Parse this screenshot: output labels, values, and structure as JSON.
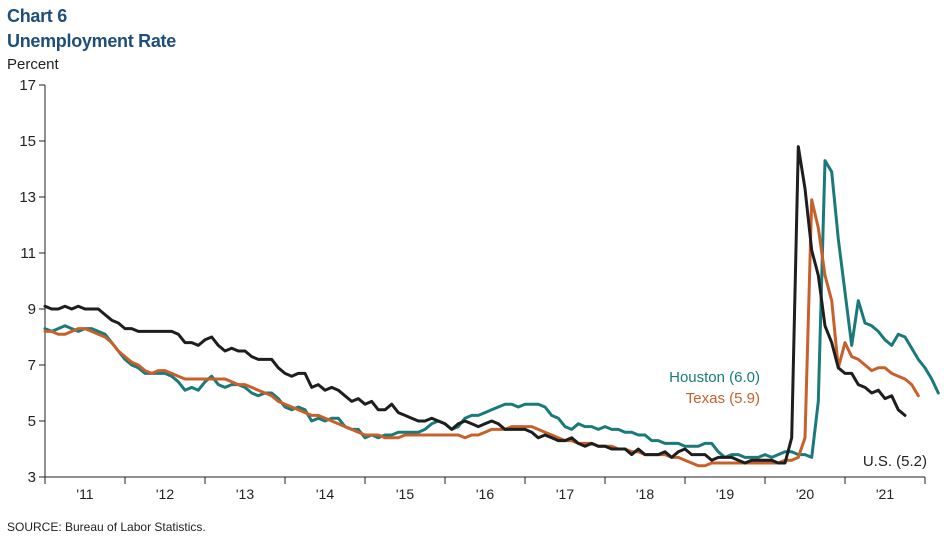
{
  "title_line1": "Chart 6",
  "title_line2": "Unemployment Rate",
  "unit_label": "Percent",
  "source": "SOURCE: Bureau of Labor Statistics.",
  "chart_data": {
    "type": "line",
    "title": "Unemployment Rate",
    "ylabel": "Percent",
    "xlabel": "",
    "ylim": [
      3,
      17
    ],
    "yticks": [
      3,
      5,
      7,
      9,
      11,
      13,
      15,
      17
    ],
    "xlim": [
      2010.5,
      2021.5
    ],
    "x_ticks": [
      {
        "label": "'11",
        "x": 2011
      },
      {
        "label": "'12",
        "x": 2012
      },
      {
        "label": "'13",
        "x": 2013
      },
      {
        "label": "'14",
        "x": 2014
      },
      {
        "label": "'15",
        "x": 2015
      },
      {
        "label": "'16",
        "x": 2016
      },
      {
        "label": "'17",
        "x": 2017
      },
      {
        "label": "'18",
        "x": 2018
      },
      {
        "label": "'19",
        "x": 2019
      },
      {
        "label": "'20",
        "x": 2020
      },
      {
        "label": "'21",
        "x": 2021
      }
    ],
    "x_start": 2010.5,
    "x_step_months": 1,
    "series": [
      {
        "name": "Houston",
        "label": "Houston (6.0)",
        "color": "#1a7a7a",
        "values": [
          8.3,
          8.2,
          8.3,
          8.4,
          8.3,
          8.2,
          8.3,
          8.3,
          8.2,
          8.1,
          7.8,
          7.5,
          7.2,
          7.0,
          6.9,
          6.7,
          6.7,
          6.7,
          6.7,
          6.6,
          6.4,
          6.1,
          6.2,
          6.1,
          6.4,
          6.6,
          6.3,
          6.2,
          6.3,
          6.3,
          6.2,
          6.0,
          5.9,
          6.0,
          6.0,
          5.8,
          5.5,
          5.4,
          5.5,
          5.4,
          5.0,
          5.1,
          5.0,
          5.1,
          5.1,
          4.8,
          4.7,
          4.7,
          4.4,
          4.5,
          4.4,
          4.5,
          4.5,
          4.6,
          4.6,
          4.6,
          4.6,
          4.7,
          4.9,
          5.0,
          4.9,
          4.7,
          4.8,
          5.1,
          5.2,
          5.2,
          5.3,
          5.4,
          5.5,
          5.6,
          5.6,
          5.5,
          5.6,
          5.6,
          5.6,
          5.5,
          5.2,
          5.1,
          4.8,
          4.7,
          4.9,
          4.8,
          4.8,
          4.7,
          4.8,
          4.7,
          4.7,
          4.6,
          4.6,
          4.5,
          4.5,
          4.3,
          4.3,
          4.2,
          4.2,
          4.2,
          4.1,
          4.1,
          4.1,
          4.2,
          4.2,
          3.9,
          3.7,
          3.8,
          3.8,
          3.7,
          3.7,
          3.7,
          3.8,
          3.7,
          3.8,
          3.9,
          3.9,
          3.8,
          3.8,
          3.7,
          5.7,
          14.3,
          13.9,
          11.5,
          9.6,
          7.7,
          9.3,
          8.5,
          8.4,
          8.2,
          7.9,
          7.7,
          8.1,
          8.0,
          7.6,
          7.2,
          6.9,
          6.5,
          6.0
        ]
      },
      {
        "name": "Texas",
        "label": "Texas (5.9)",
        "color": "#c8602c",
        "values": [
          8.2,
          8.2,
          8.1,
          8.1,
          8.2,
          8.3,
          8.3,
          8.2,
          8.1,
          8.0,
          7.8,
          7.5,
          7.3,
          7.1,
          7.0,
          6.8,
          6.7,
          6.8,
          6.8,
          6.7,
          6.6,
          6.5,
          6.5,
          6.5,
          6.5,
          6.5,
          6.5,
          6.5,
          6.4,
          6.3,
          6.3,
          6.2,
          6.1,
          6.0,
          5.9,
          5.7,
          5.6,
          5.5,
          5.4,
          5.3,
          5.2,
          5.2,
          5.1,
          5.0,
          4.9,
          4.8,
          4.7,
          4.6,
          4.5,
          4.5,
          4.5,
          4.4,
          4.4,
          4.4,
          4.5,
          4.5,
          4.5,
          4.5,
          4.5,
          4.5,
          4.5,
          4.5,
          4.5,
          4.4,
          4.5,
          4.5,
          4.6,
          4.7,
          4.7,
          4.7,
          4.8,
          4.8,
          4.8,
          4.8,
          4.7,
          4.6,
          4.5,
          4.4,
          4.3,
          4.3,
          4.2,
          4.2,
          4.2,
          4.1,
          4.1,
          4.1,
          4.0,
          4.0,
          3.9,
          3.9,
          3.8,
          3.8,
          3.8,
          3.8,
          3.7,
          3.7,
          3.6,
          3.5,
          3.4,
          3.4,
          3.5,
          3.5,
          3.5,
          3.5,
          3.5,
          3.5,
          3.5,
          3.5,
          3.5,
          3.5,
          3.5,
          3.6,
          3.6,
          3.7,
          4.4,
          12.9,
          11.9,
          10.2,
          9.3,
          6.9,
          7.8,
          7.3,
          7.2,
          7.0,
          6.8,
          6.9,
          6.9,
          6.7,
          6.6,
          6.5,
          6.3,
          5.9
        ]
      },
      {
        "name": "U.S.",
        "label": "U.S. (5.2)",
        "color": "#1e1e1e",
        "values": [
          9.1,
          9.0,
          9.0,
          9.1,
          9.0,
          9.1,
          9.0,
          9.0,
          9.0,
          8.8,
          8.6,
          8.5,
          8.3,
          8.3,
          8.2,
          8.2,
          8.2,
          8.2,
          8.2,
          8.2,
          8.1,
          7.8,
          7.8,
          7.7,
          7.9,
          8.0,
          7.7,
          7.5,
          7.6,
          7.5,
          7.5,
          7.3,
          7.2,
          7.2,
          7.2,
          6.9,
          6.7,
          6.6,
          6.7,
          6.7,
          6.2,
          6.3,
          6.1,
          6.2,
          6.1,
          5.9,
          5.7,
          5.8,
          5.6,
          5.7,
          5.4,
          5.4,
          5.6,
          5.3,
          5.2,
          5.1,
          5.0,
          5.0,
          5.1,
          5.0,
          4.9,
          4.7,
          4.9,
          5.0,
          4.9,
          4.8,
          4.9,
          5.0,
          4.9,
          4.7,
          4.7,
          4.7,
          4.7,
          4.6,
          4.4,
          4.5,
          4.4,
          4.3,
          4.3,
          4.4,
          4.2,
          4.1,
          4.2,
          4.1,
          4.1,
          4.0,
          4.0,
          4.0,
          3.8,
          4.0,
          3.8,
          3.8,
          3.8,
          3.9,
          3.7,
          3.9,
          4.0,
          3.8,
          3.8,
          3.8,
          3.6,
          3.7,
          3.7,
          3.7,
          3.6,
          3.5,
          3.6,
          3.6,
          3.6,
          3.6,
          3.5,
          3.5,
          4.4,
          14.8,
          13.3,
          11.1,
          10.2,
          8.4,
          7.8,
          6.9,
          6.7,
          6.7,
          6.3,
          6.2,
          6.0,
          6.1,
          5.8,
          5.9,
          5.4,
          5.2
        ]
      }
    ]
  }
}
